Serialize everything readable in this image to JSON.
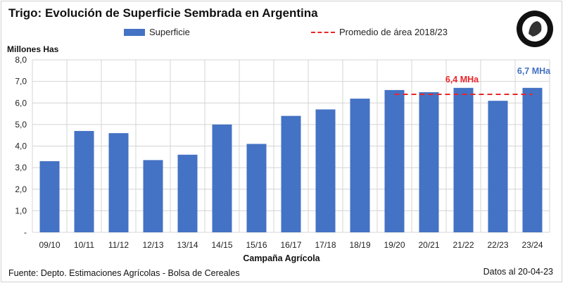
{
  "chart_data": {
    "type": "bar",
    "title": "Trigo: Evolución de Superficie Sembrada en Argentina",
    "ylabel": "Millones Has",
    "xlabel": "Campaña Agrícola",
    "ylim": [
      0,
      8
    ],
    "yticks": [
      "-",
      "1,0",
      "2,0",
      "3,0",
      "4,0",
      "5,0",
      "6,0",
      "7,0",
      "8,0"
    ],
    "categories": [
      "09/10",
      "10/11",
      "11/12",
      "12/13",
      "13/14",
      "14/15",
      "15/16",
      "16/17",
      "17/18",
      "18/19",
      "19/20",
      "20/21",
      "21/22",
      "22/23",
      "23/24"
    ],
    "series": [
      {
        "name": "Superficie",
        "color": "#4472c4",
        "values": [
          3.3,
          4.7,
          4.6,
          3.35,
          3.6,
          5.0,
          4.1,
          5.4,
          5.7,
          6.2,
          6.6,
          6.5,
          6.7,
          6.1,
          6.7
        ]
      }
    ],
    "reference_line": {
      "name": "Promedio de área 2018/23",
      "value": 6.4,
      "from": "19/20",
      "to": "23/24",
      "color": "#e8262a",
      "label": "6,4 MHa"
    },
    "annotations": [
      {
        "text": "6,7 MHa",
        "category": "23/24",
        "color": "#4472c4"
      }
    ],
    "grid": true,
    "legend": "top"
  },
  "footer": {
    "source": "Fuente: Depto. Estimaciones Agrícolas - Bolsa de Cereales",
    "date": "Datos al 20-04-23"
  }
}
